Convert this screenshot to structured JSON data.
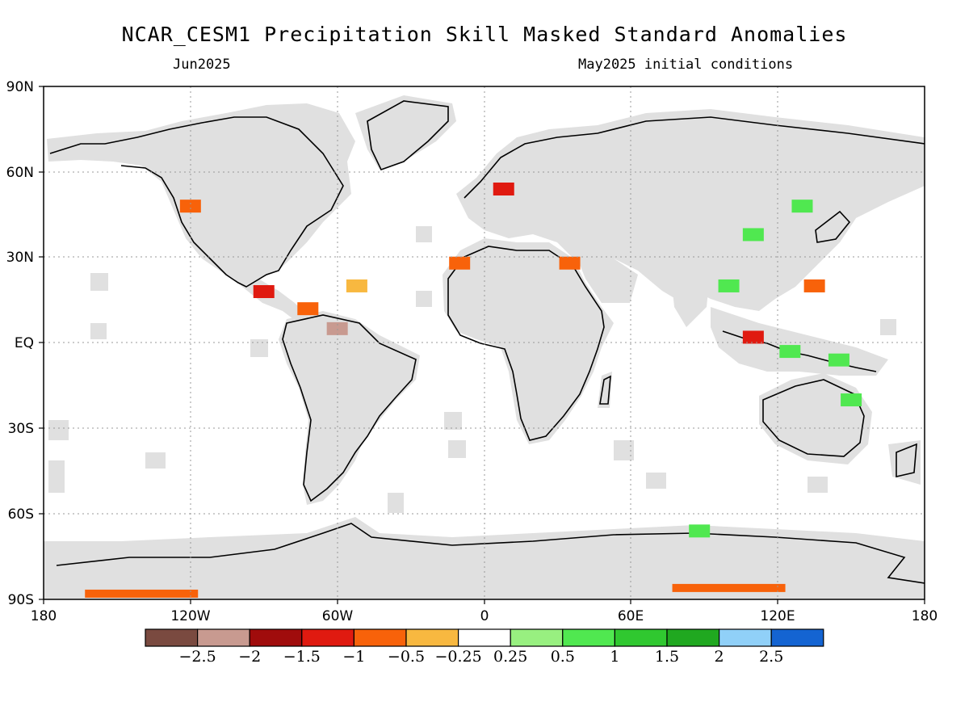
{
  "title": "NCAR_CESM1 Precipitation Skill Masked Standard Anomalies",
  "subtitle_left": "Jun2025",
  "subtitle_right": "May2025 initial conditions",
  "axes": {
    "lat_labels": [
      "90N",
      "60N",
      "30N",
      "EQ",
      "30S",
      "60S",
      "90S"
    ],
    "lon_labels": [
      "180",
      "120W",
      "60W",
      "0",
      "60E",
      "120E",
      "180"
    ]
  },
  "colorbar": {
    "colors": [
      "#7a4a40",
      "#c89a90",
      "#a00c0c",
      "#e01a10",
      "#f8620a",
      "#f8b840",
      "#ffffff",
      "#98f080",
      "#50e850",
      "#30c830",
      "#20a820",
      "#90d0f8",
      "#1464d2"
    ],
    "labels": [
      "-2.5",
      "-2",
      "-1.5",
      "-1",
      "-0.5",
      "-0.25",
      "0.25",
      "0.5",
      "1",
      "1.5",
      "2",
      "2.5"
    ]
  },
  "map": {
    "ocean_color": "#ffffff",
    "land_mask_color": "#e0e0e0",
    "gridline_style": "dotted",
    "features": [
      {
        "lon": -90,
        "lat": 18,
        "value": -1.2
      },
      {
        "lon": -72,
        "lat": 12,
        "value": -0.8
      },
      {
        "lon": -60,
        "lat": 5,
        "value": -2.3
      },
      {
        "lon": 8,
        "lat": 54,
        "value": -1.3
      },
      {
        "lon": -10,
        "lat": 28,
        "value": -0.9
      },
      {
        "lon": 110,
        "lat": 2,
        "value": -1.1
      },
      {
        "lon": 125,
        "lat": -3,
        "value": 0.9
      },
      {
        "lon": 145,
        "lat": -6,
        "value": 0.8
      },
      {
        "lon": 100,
        "lat": 20,
        "value": 0.6
      },
      {
        "lon": 88,
        "lat": -66,
        "value": 0.7
      },
      {
        "lon": -140,
        "lat": -88,
        "value": -1.0
      },
      {
        "lon": 100,
        "lat": -86,
        "value": -0.6
      },
      {
        "lon": 135,
        "lat": 20,
        "value": -0.7
      },
      {
        "lon": -120,
        "lat": 48,
        "value": -0.6
      },
      {
        "lon": -52,
        "lat": 20,
        "value": -0.4
      },
      {
        "lon": 130,
        "lat": 48,
        "value": 0.6
      },
      {
        "lon": 35,
        "lat": 28,
        "value": -0.7
      },
      {
        "lon": 110,
        "lat": 38,
        "value": 0.8
      },
      {
        "lon": 150,
        "lat": -20,
        "value": 0.7
      }
    ]
  }
}
